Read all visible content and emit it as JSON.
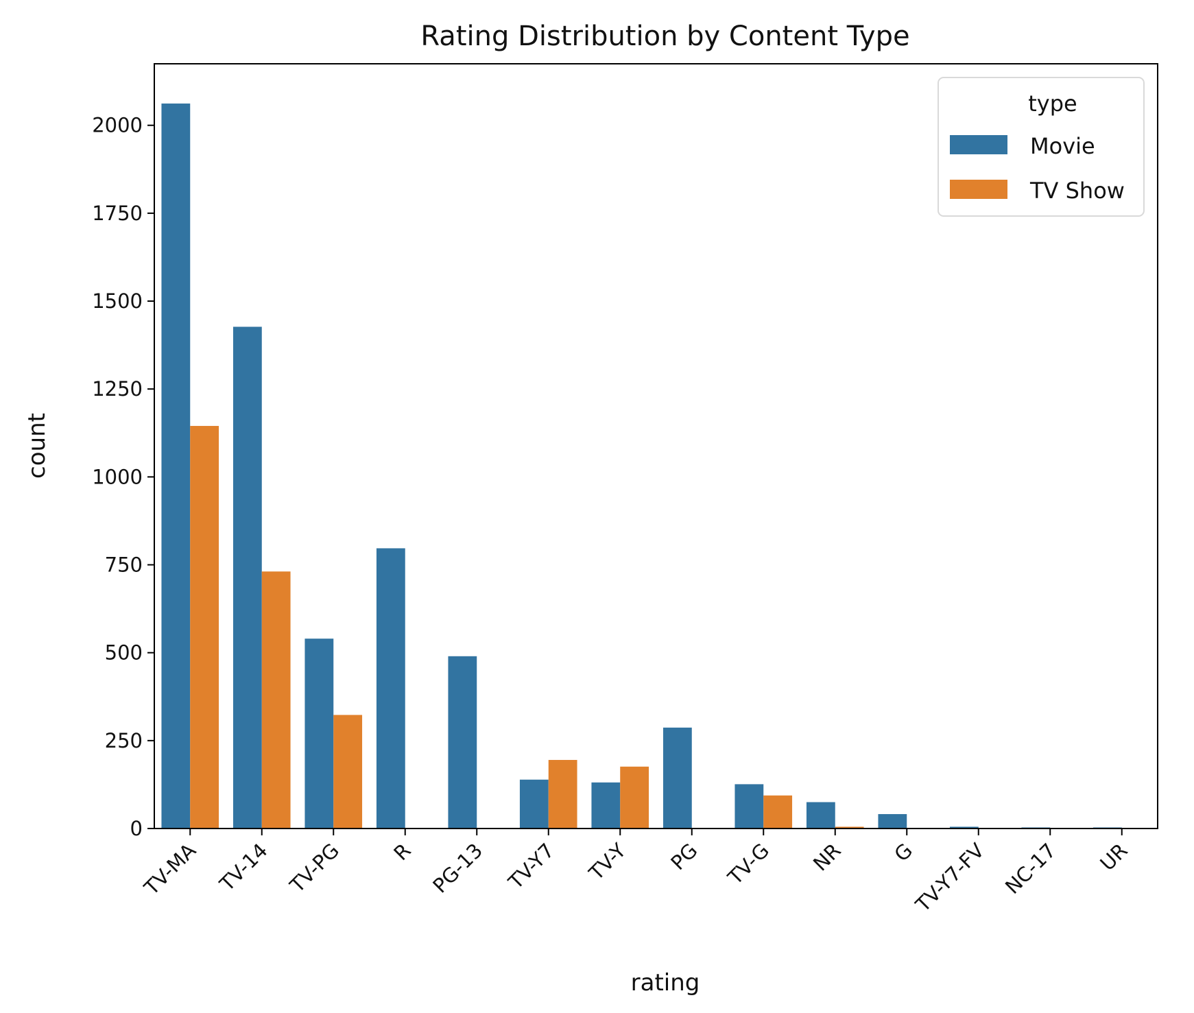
{
  "chart_data": {
    "type": "bar",
    "title": "Rating Distribution by Content Type",
    "xlabel": "rating",
    "ylabel": "count",
    "categories": [
      "TV-MA",
      "TV-14",
      "TV-PG",
      "R",
      "PG-13",
      "TV-Y7",
      "TV-Y",
      "PG",
      "TV-G",
      "NR",
      "G",
      "TV-Y7-FV",
      "NC-17",
      "UR"
    ],
    "series": [
      {
        "name": "Movie",
        "color": "#3274a1",
        "values": [
          2062,
          1427,
          540,
          797,
          490,
          139,
          131,
          287,
          126,
          75,
          41,
          5,
          3,
          3
        ]
      },
      {
        "name": "TV Show",
        "color": "#e1812c",
        "values": [
          1145,
          731,
          323,
          0,
          0,
          195,
          176,
          0,
          94,
          5,
          0,
          1,
          0,
          0
        ]
      }
    ],
    "ylim": [
      0,
      2175
    ],
    "yticks": [
      0,
      250,
      500,
      750,
      1000,
      1250,
      1500,
      1750,
      2000
    ],
    "legend": {
      "title": "type",
      "position": "top-right"
    },
    "grid": false
  }
}
